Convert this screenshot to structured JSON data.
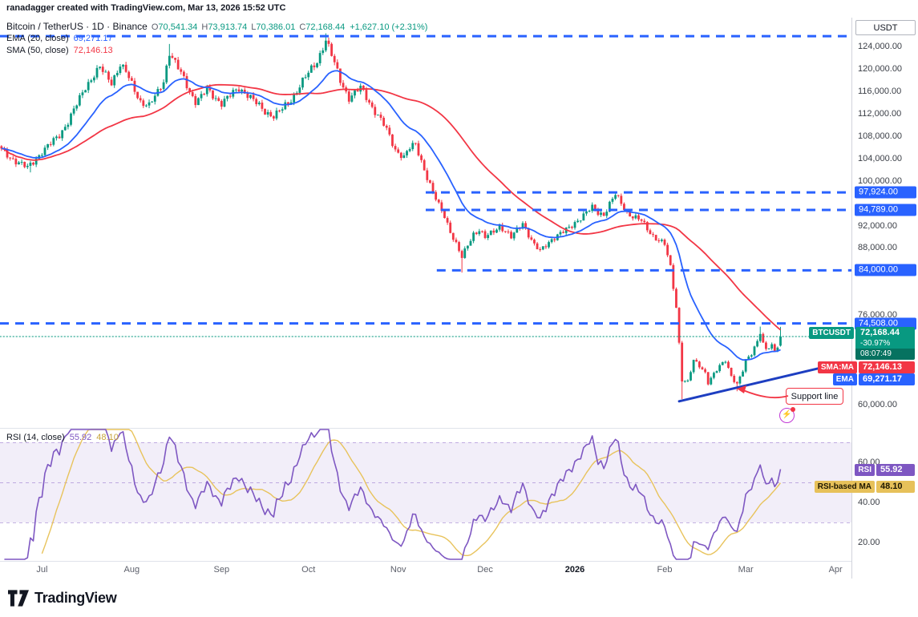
{
  "attribution": "ranadagger created with TradingView.com, Mar 13, 2026 15:52 UTC",
  "header": {
    "symbol_title": "Bitcoin / TetherUS · 1D · Binance",
    "ohlc": {
      "o_label": "O",
      "o": "70,541.34",
      "h_label": "H",
      "h": "73,913.74",
      "l_label": "L",
      "l": "70,386.01",
      "c_label": "C",
      "c": "72,168.44",
      "change": "+1,627.10 (+2.31%)"
    },
    "ema_label": "EMA (20, close)",
    "ema_value": "69,271.17",
    "sma_label": "SMA (50, close)",
    "sma_value": "72,146.13"
  },
  "rsi_header": {
    "label": "RSI (14, close)",
    "value": "55.92",
    "ma_value": "48.10"
  },
  "price_scale": {
    "currency": "USDT",
    "ticks": [
      {
        "label": "124,000.00",
        "price": 124000
      },
      {
        "label": "120,000.00",
        "price": 120000
      },
      {
        "label": "116,000.00",
        "price": 116000
      },
      {
        "label": "112,000.00",
        "price": 112000
      },
      {
        "label": "108,000.00",
        "price": 108000
      },
      {
        "label": "104,000.00",
        "price": 104000
      },
      {
        "label": "100,000.00",
        "price": 100000
      },
      {
        "label": "92,000.00",
        "price": 92000
      },
      {
        "label": "88,000.00",
        "price": 88000
      },
      {
        "label": "76,000.00",
        "price": 76000
      },
      {
        "label": "60,000.00",
        "price": 60000
      }
    ],
    "level_badges": [
      {
        "label": "97,924.00",
        "price": 97924
      },
      {
        "label": "94,789.00",
        "price": 94789
      },
      {
        "label": "84,000.00",
        "price": 84000
      },
      {
        "label": "74,508.00",
        "price": 74508
      }
    ]
  },
  "rsi_scale": [
    {
      "label": "60.00",
      "value": 60
    },
    {
      "label": "40.00",
      "value": 40
    },
    {
      "label": "20.00",
      "value": 20
    }
  ],
  "badges": {
    "symbol": {
      "name": "BTCUSDT",
      "price": "72,168.44",
      "change_pct": "-30.97%",
      "countdown": "08:07:49"
    },
    "sma": {
      "label": "SMA:MA",
      "value": "72,146.13"
    },
    "ema": {
      "label": "EMA",
      "value": "69,271.17"
    },
    "rsi": {
      "label": "RSI",
      "value": "55.92"
    },
    "rsi_ma": {
      "label": "RSI-based MA",
      "value": "48.10"
    }
  },
  "annotations": {
    "support_label": "Support line",
    "flash_icon": "⚡"
  },
  "footer": {
    "brand": "TradingView"
  },
  "colors": {
    "up": "#089981",
    "down": "#F23645",
    "ema": "#2962FF",
    "sma": "#F23645",
    "level": "#2962FF",
    "support": "#1D3EC1",
    "current_line": "#089981",
    "rsi": "#7E57C2",
    "rsi_ma": "#E8C35C",
    "rsi_band": "rgba(126,87,194,0.10)",
    "rsi_ref": "rgba(126,87,194,0.45)"
  },
  "chart_data": {
    "type": "candlestick",
    "symbol": "BTCUSDT",
    "exchange": "Binance",
    "interval": "1D",
    "current_ohlc": {
      "open": 70541.34,
      "high": 73913.74,
      "low": 70386.01,
      "close": 72168.44,
      "change": 1627.1,
      "change_pct": 2.31
    },
    "price_axis": {
      "min": 60000,
      "max": 126500,
      "currency": "USDT"
    },
    "close_keypoints": [
      [
        0,
        105500
      ],
      [
        3,
        104200
      ],
      [
        6,
        103200
      ],
      [
        9,
        102300
      ],
      [
        12,
        104000
      ],
      [
        14,
        105200
      ],
      [
        17,
        106600
      ],
      [
        20,
        108200
      ],
      [
        23,
        110600
      ],
      [
        26,
        113600
      ],
      [
        29,
        116800
      ],
      [
        32,
        119000
      ],
      [
        34,
        120200
      ],
      [
        36,
        118800
      ],
      [
        38,
        117600
      ],
      [
        41,
        120800
      ],
      [
        43,
        119400
      ],
      [
        45,
        117200
      ],
      [
        48,
        114200
      ],
      [
        51,
        113400
      ],
      [
        54,
        115800
      ],
      [
        56,
        117900
      ],
      [
        58,
        123000
      ],
      [
        60,
        121000
      ],
      [
        63,
        118200
      ],
      [
        65,
        116000
      ],
      [
        67,
        114200
      ],
      [
        69,
        115000
      ],
      [
        71,
        116300
      ],
      [
        74,
        114800
      ],
      [
        76,
        113900
      ],
      [
        79,
        115200
      ],
      [
        82,
        116600
      ],
      [
        85,
        115400
      ],
      [
        88,
        113800
      ],
      [
        91,
        112400
      ],
      [
        94,
        111600
      ],
      [
        97,
        112800
      ],
      [
        100,
        114500
      ],
      [
        102,
        116200
      ],
      [
        104,
        117800
      ],
      [
        106,
        119200
      ],
      [
        109,
        121400
      ],
      [
        112,
        125200
      ],
      [
        114,
        122400
      ],
      [
        117,
        118000
      ],
      [
        120,
        114800
      ],
      [
        122,
        115600
      ],
      [
        124,
        116600
      ],
      [
        126,
        115000
      ],
      [
        128,
        113200
      ],
      [
        130,
        111600
      ],
      [
        132,
        110000
      ],
      [
        134,
        108000
      ],
      [
        136,
        105600
      ],
      [
        139,
        104200
      ],
      [
        141,
        105800
      ],
      [
        143,
        106600
      ],
      [
        145,
        103600
      ],
      [
        147,
        100600
      ],
      [
        149,
        97800
      ],
      [
        151,
        95600
      ],
      [
        153,
        93800
      ],
      [
        155,
        91000
      ],
      [
        157,
        88600
      ],
      [
        159,
        86200
      ],
      [
        161,
        88600
      ],
      [
        163,
        90600
      ],
      [
        165,
        91200
      ],
      [
        167,
        89800
      ],
      [
        169,
        90600
      ],
      [
        172,
        92000
      ],
      [
        174,
        91000
      ],
      [
        176,
        89800
      ],
      [
        178,
        91200
      ],
      [
        180,
        92600
      ],
      [
        182,
        90400
      ],
      [
        184,
        88400
      ],
      [
        186,
        87400
      ],
      [
        188,
        88600
      ],
      [
        190,
        89600
      ],
      [
        192,
        90200
      ],
      [
        194,
        90800
      ],
      [
        196,
        91600
      ],
      [
        198,
        92600
      ],
      [
        201,
        93800
      ],
      [
        204,
        95200
      ],
      [
        206,
        94400
      ],
      [
        208,
        94000
      ],
      [
        210,
        95800
      ],
      [
        212,
        97500
      ],
      [
        214,
        96000
      ],
      [
        216,
        94400
      ],
      [
        218,
        93600
      ],
      [
        221,
        92800
      ],
      [
        223,
        91400
      ],
      [
        225,
        90200
      ],
      [
        227,
        89400
      ],
      [
        229,
        88600
      ],
      [
        231,
        84500
      ],
      [
        233,
        77500
      ],
      [
        235,
        64500
      ],
      [
        237,
        64000
      ],
      [
        239,
        67800
      ],
      [
        241,
        67000
      ],
      [
        243,
        65800
      ],
      [
        244,
        64000
      ],
      [
        246,
        65400
      ],
      [
        248,
        66800
      ],
      [
        250,
        68000
      ],
      [
        252,
        65200
      ],
      [
        254,
        63600
      ],
      [
        256,
        66000
      ],
      [
        257,
        67800
      ],
      [
        259,
        69200
      ],
      [
        261,
        71500
      ],
      [
        262,
        73000
      ],
      [
        263,
        70800
      ],
      [
        264,
        69800
      ],
      [
        266,
        70400
      ],
      [
        267,
        69600
      ],
      [
        268,
        70541
      ],
      [
        269,
        72168.44
      ]
    ],
    "forced_wicks": {
      "10": {
        "low": 101500
      },
      "58": {
        "high": 124450
      },
      "112": {
        "high": 126350
      },
      "159": {
        "low": 83600
      },
      "212": {
        "high": 97900
      },
      "235": {
        "low": 61000
      },
      "254": {
        "low": 62400
      },
      "262": {
        "high": 73950
      }
    },
    "last_candle": {
      "o": 70541.34,
      "h": 73913.74,
      "l": 70386.01,
      "c": 72168.44
    },
    "levels": [
      {
        "price": 125850,
        "from_frac": 0
      },
      {
        "price": 97924,
        "from_frac": 0.5
      },
      {
        "price": 94789,
        "from_frac": 0.5
      },
      {
        "price": 84000,
        "from_frac": 0.513
      },
      {
        "price": 74508,
        "from_frac": 0
      }
    ],
    "current_price_line": 72168.44,
    "support_line": {
      "from_index": 234,
      "from_price": 60600,
      "to_index": 288,
      "to_price": 67200
    },
    "indicators": {
      "ema_length": 20,
      "ema_current": 69271.17,
      "sma_length": 50,
      "sma_current": 72146.13
    },
    "rsi": {
      "length": 14,
      "current": 55.92,
      "ma_current": 48.1,
      "band": [
        70,
        30
      ],
      "mid": 50
    },
    "time_axis": [
      {
        "label": "Jul",
        "index": 14
      },
      {
        "label": "Aug",
        "index": 45
      },
      {
        "label": "Sep",
        "index": 76
      },
      {
        "label": "Oct",
        "index": 106
      },
      {
        "label": "Nov",
        "index": 137
      },
      {
        "label": "Dec",
        "index": 167
      },
      {
        "label": "2026",
        "index": 198,
        "bold": true
      },
      {
        "label": "Feb",
        "index": 229
      },
      {
        "label": "Mar",
        "index": 257
      },
      {
        "label": "Apr",
        "index": 288
      }
    ]
  }
}
